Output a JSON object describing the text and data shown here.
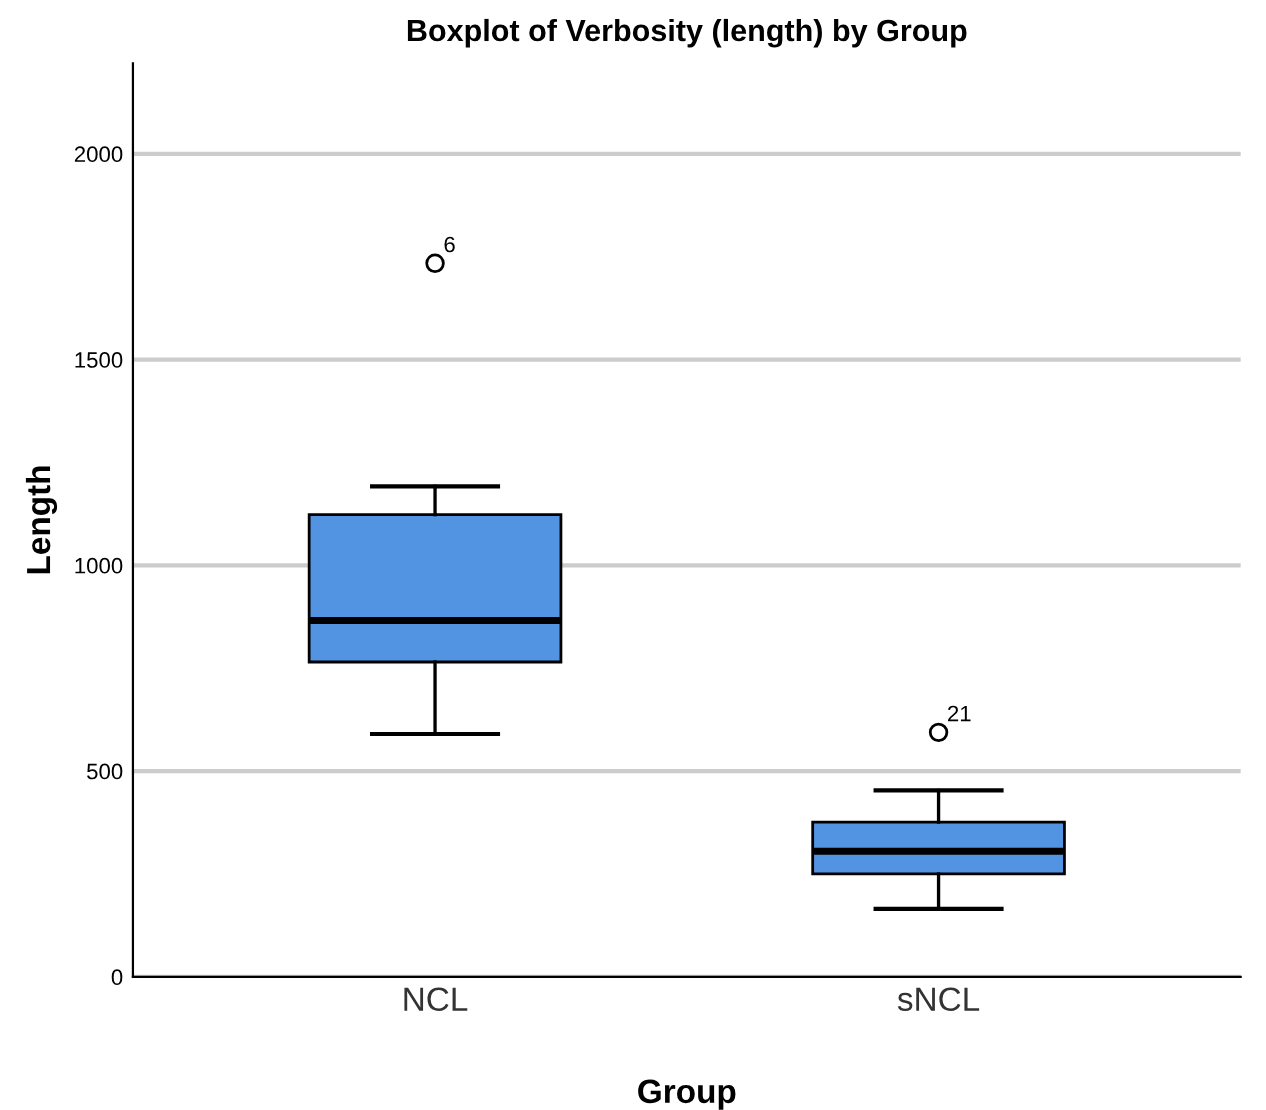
{
  "chart_data": {
    "type": "box",
    "title": "Boxplot of Verbosity (length) by Group",
    "xlabel": "Group",
    "ylabel": "Length",
    "categories": [
      "NCL",
      "sNCL"
    ],
    "boxes": [
      {
        "low": 590,
        "q1": 765,
        "median": 866,
        "q3": 1123,
        "high": 1192,
        "outliers": [
          1734
        ]
      },
      {
        "low": 165,
        "q1": 250,
        "median": 305,
        "q3": 376,
        "high": 453,
        "outliers": [
          594
        ]
      }
    ],
    "color": "#5294e2",
    "ylim": [
      0,
      2220
    ],
    "yticks": [
      0,
      500,
      1000,
      1500,
      2000
    ],
    "grid": "y",
    "annotations": [
      "6",
      "21"
    ]
  }
}
